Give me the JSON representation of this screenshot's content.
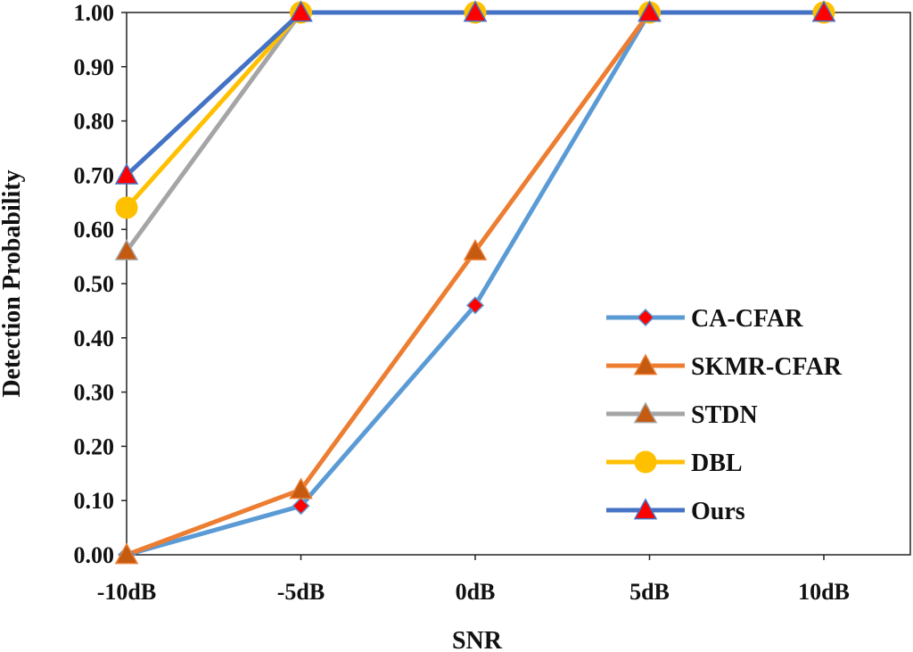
{
  "chart_data": {
    "type": "line",
    "xlabel": "SNR",
    "ylabel": "Detection Probability",
    "categories": [
      "-10dB",
      "-5dB",
      "0dB",
      "5dB",
      "10dB"
    ],
    "ylim": [
      0,
      1
    ],
    "yticks": [
      "0.00",
      "0.10",
      "0.20",
      "0.30",
      "0.40",
      "0.50",
      "0.60",
      "0.70",
      "0.80",
      "0.90",
      "1.00"
    ],
    "grid": false,
    "legend_position": "bottom-right",
    "series": [
      {
        "name": "CA-CFAR",
        "values": [
          0.0,
          0.09,
          0.46,
          1.0,
          1.0
        ],
        "color": "#5b9bd5",
        "marker": "diamond",
        "marker_color": "#ff0000"
      },
      {
        "name": "SKMR-CFAR",
        "values": [
          0.0,
          0.12,
          0.56,
          1.0,
          1.0
        ],
        "color": "#ed7d31",
        "marker": "triangle",
        "marker_color": "#c55a11"
      },
      {
        "name": "STDN",
        "values": [
          0.56,
          1.0,
          1.0,
          1.0,
          1.0
        ],
        "color": "#a5a5a5",
        "marker": "triangle",
        "marker_color": "#c55a11"
      },
      {
        "name": "DBL",
        "values": [
          0.64,
          1.0,
          1.0,
          1.0,
          1.0
        ],
        "color": "#ffc000",
        "marker": "circle",
        "marker_color": "#ffc000"
      },
      {
        "name": "Ours",
        "values": [
          0.7,
          1.0,
          1.0,
          1.0,
          1.0
        ],
        "color": "#4472c4",
        "marker": "triangle",
        "marker_color": "#ff0000"
      }
    ]
  }
}
